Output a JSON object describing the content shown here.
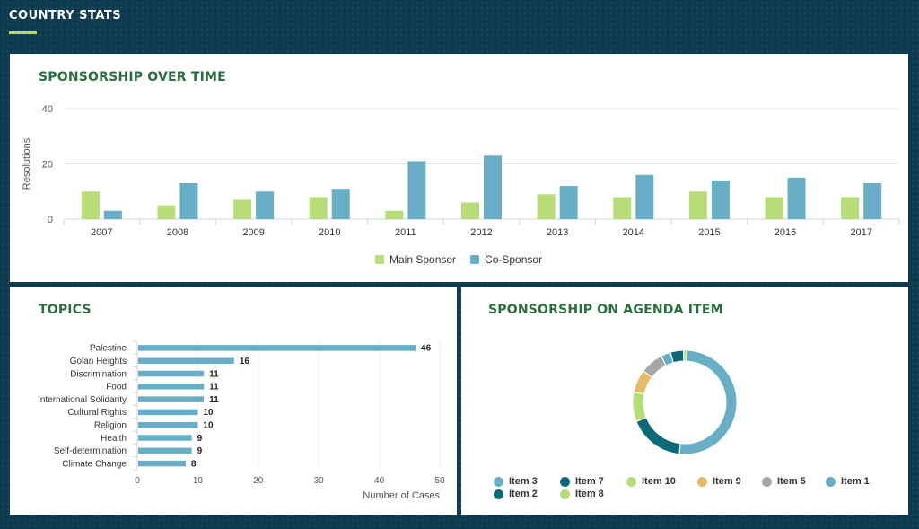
{
  "page": {
    "title": "COUNTRY STATS"
  },
  "panels": {
    "sponsorship": {
      "title": "SPONSORSHIP OVER TIME"
    },
    "topics": {
      "title": "TOPICS"
    },
    "agenda": {
      "title": "SPONSORSHIP ON AGENDA ITEM"
    }
  },
  "colors": {
    "main": "#b7dc78",
    "co": "#68aec6",
    "titles": "#2a6e3f",
    "bars": "#68aec6"
  },
  "chart_data": [
    {
      "type": "bar",
      "title": "SPONSORSHIP OVER TIME",
      "ylabel": "Resolutions",
      "ylim": [
        0,
        40
      ],
      "yticks": [
        0,
        20,
        40
      ],
      "categories": [
        "2007",
        "2008",
        "2009",
        "2010",
        "2011",
        "2012",
        "2013",
        "2014",
        "2015",
        "2016",
        "2017"
      ],
      "series": [
        {
          "name": "Main Sponsor",
          "color": "#b7dc78",
          "values": [
            10,
            5,
            7,
            8,
            3,
            6,
            9,
            8,
            10,
            8,
            8
          ]
        },
        {
          "name": "Co-Sponsor",
          "color": "#68aec6",
          "values": [
            3,
            13,
            10,
            11,
            21,
            23,
            12,
            16,
            14,
            15,
            13
          ]
        }
      ],
      "legend": "bottom-center",
      "grid": true
    },
    {
      "type": "bar",
      "orientation": "horizontal",
      "title": "TOPICS",
      "xlabel": "Number of Cases",
      "xlim": [
        0,
        50
      ],
      "xticks": [
        0,
        10,
        20,
        30,
        40,
        50
      ],
      "categories": [
        "Palestine",
        "Golan Heights",
        "Discrimination",
        "Food",
        "International Solidarity",
        "Cultural Rights",
        "Religion",
        "Health",
        "Self-determination",
        "Climate Change"
      ],
      "values": [
        46,
        16,
        11,
        11,
        11,
        10,
        10,
        9,
        9,
        8
      ],
      "grid": true
    },
    {
      "type": "pie",
      "donut": true,
      "title": "SPONSORSHIP ON AGENDA ITEM",
      "slices": [
        {
          "label": "Item 3",
          "color": "#68aec6",
          "value": 50
        },
        {
          "label": "Item 2",
          "color": "#0c6a78",
          "value": 17
        },
        {
          "label": "Item 10",
          "color": "#b7dc78",
          "value": 9
        },
        {
          "label": "Item 9",
          "color": "#e6b965",
          "value": 7
        },
        {
          "label": "Item 5",
          "color": "#a6a6a6",
          "value": 7
        },
        {
          "label": "Item 1",
          "color": "#68aec6",
          "value": 3
        },
        {
          "label": "Item 7",
          "color": "#0c6a78",
          "value": 4
        },
        {
          "label": "Item 8",
          "color": "#b7dc78",
          "value": 1
        }
      ],
      "legend_order": [
        "Item 3",
        "Item 7",
        "Item 10",
        "Item 9",
        "Item 5",
        "Item 1",
        "Item 2",
        "Item 8"
      ],
      "legend": "bottom"
    }
  ]
}
